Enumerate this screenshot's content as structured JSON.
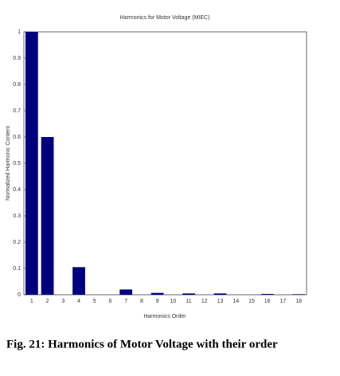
{
  "chart_data": {
    "type": "bar",
    "title": "Harmonics for Motor Voltage (MIEC)",
    "x_label": "Harmonics Order",
    "y_label": "Normalized Harmonic Content",
    "caption": "Fig. 21: Harmonics of Motor Voltage with their order",
    "categories": [
      "1",
      "2",
      "3",
      "4",
      "5",
      "6",
      "7",
      "8",
      "9",
      "10",
      "11",
      "12",
      "13",
      "14",
      "15",
      "16",
      "17",
      "18"
    ],
    "values": [
      1,
      0.6,
      0,
      0.105,
      0,
      0,
      0.02,
      0,
      0.007,
      0,
      0.005,
      0,
      0.005,
      0,
      0,
      0.003,
      0,
      0.002
    ],
    "color": "#00007f",
    "ylim": [
      0,
      1
    ],
    "yticks": [
      0,
      0.1,
      0.2,
      0.3,
      0.4,
      0.5,
      0.6,
      0.7,
      0.8,
      0.9,
      1
    ],
    "grid": false
  }
}
